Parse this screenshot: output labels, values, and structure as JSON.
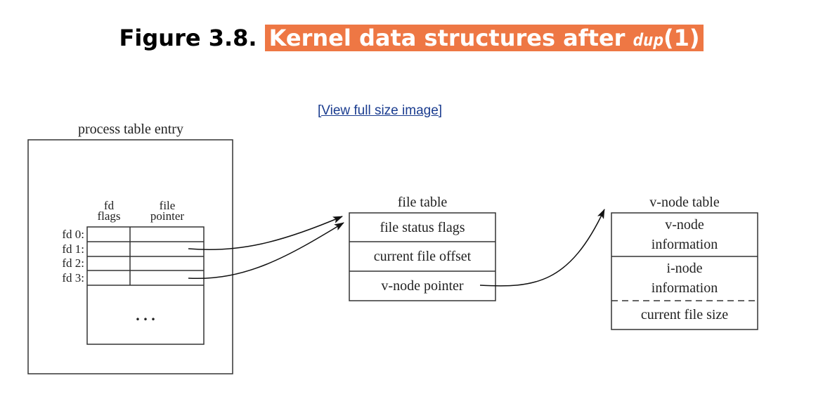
{
  "figure": {
    "label": "Figure 3.8.",
    "caption_prefix": "Kernel data structures after",
    "function_name": "dup",
    "function_args": "(1)",
    "highlight_color": "#ee7744"
  },
  "link": {
    "text": "[View full size image]"
  },
  "diagram": {
    "process_table": {
      "title": "process table entry",
      "col_fd_flags": [
        "fd",
        "flags"
      ],
      "col_file_pointer": [
        "file",
        "pointer"
      ],
      "rows": [
        "fd 0:",
        "fd 1:",
        "fd 2:",
        "fd 3:"
      ],
      "ellipsis": ". . ."
    },
    "file_table": {
      "title": "file table",
      "rows": [
        "file status flags",
        "current file offset",
        "v-node pointer"
      ]
    },
    "vnode_table": {
      "title": "v-node table",
      "vnode_info": [
        "v-node",
        "information"
      ],
      "inode_info": [
        "i-node",
        "information"
      ],
      "file_size": "current file size"
    }
  }
}
